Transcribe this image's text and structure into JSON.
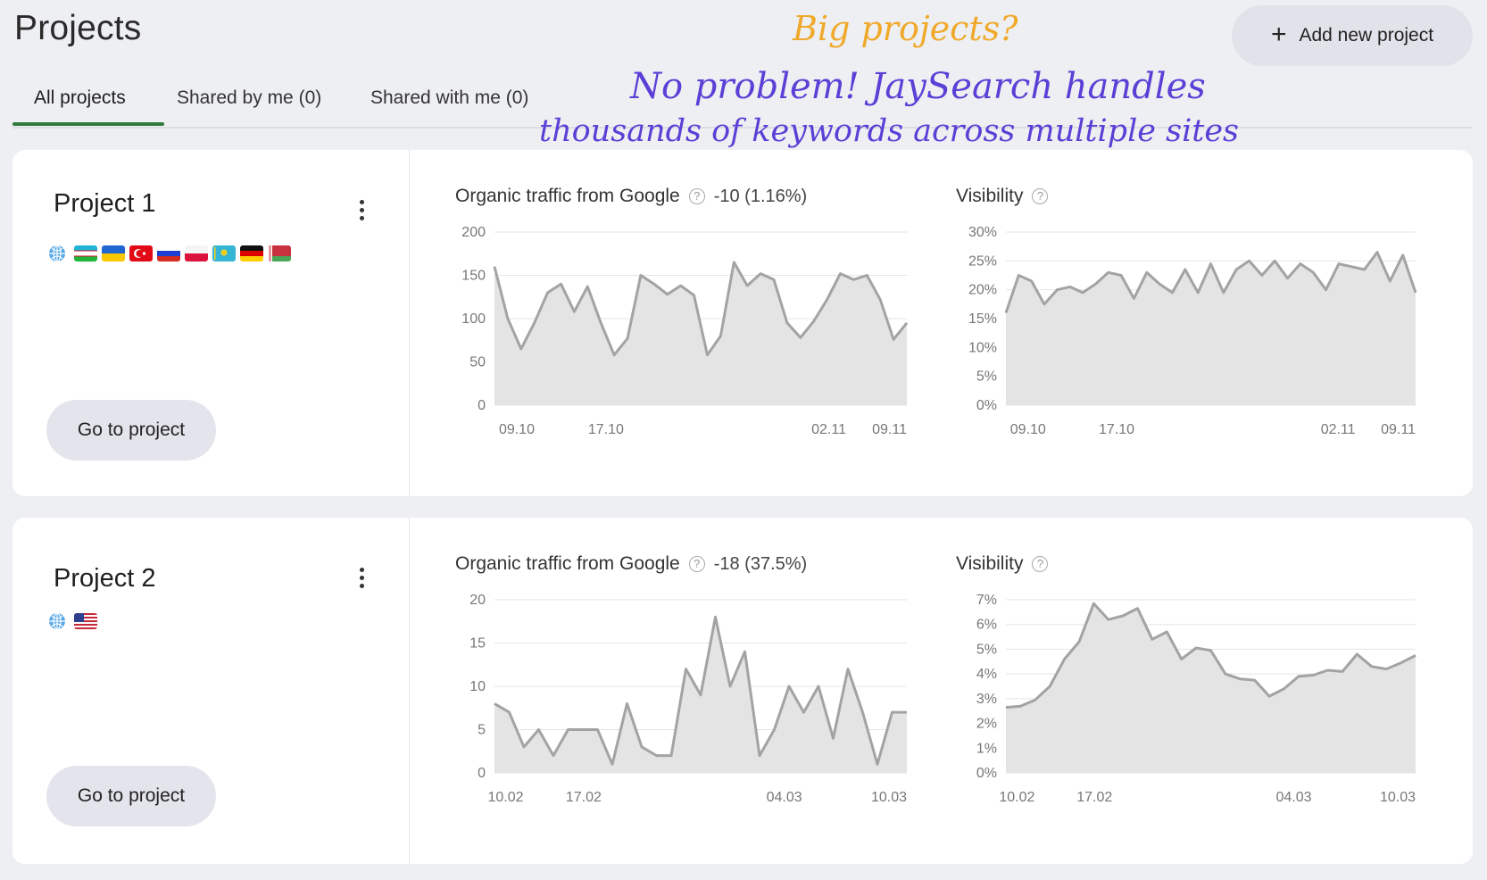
{
  "header": {
    "title": "Projects",
    "add_button_label": "Add new project",
    "add_button_icon": "plus-icon"
  },
  "tabs": [
    {
      "label": "All projects",
      "active": true
    },
    {
      "label": "Shared by me (0)",
      "active": false
    },
    {
      "label": "Shared with me (0)",
      "active": false
    }
  ],
  "annotation": {
    "line1": "Big projects?",
    "line2": "No problem! JaySearch handles",
    "line3": "thousands of keywords across multiple sites",
    "colors": {
      "line1": "#f0a92a",
      "line2": "#5b3fd6",
      "line3": "#5b3fd6"
    }
  },
  "colors": {
    "accent": "#2f7a3c",
    "chart_line": "#a3a3a3",
    "chart_fill": "#e4e4e4"
  },
  "projects": [
    {
      "name": "Project 1",
      "flags": [
        "globe-icon",
        "uzbekistan-flag",
        "ukraine-flag",
        "turkey-flag",
        "russia-flag",
        "poland-flag",
        "kazakhstan-flag",
        "germany-flag",
        "belarus-flag"
      ],
      "go_label": "Go to project",
      "traffic_title": "Organic traffic from Google",
      "traffic_delta": "-10 (1.16%)",
      "visibility_title": "Visibility"
    },
    {
      "name": "Project 2",
      "flags": [
        "globe-icon",
        "usa-flag"
      ],
      "go_label": "Go to project",
      "traffic_title": "Organic traffic from Google",
      "traffic_delta": "-18 (37.5%)",
      "visibility_title": "Visibility"
    }
  ],
  "chart_data": [
    {
      "type": "area",
      "y_tick_labels": [
        "0",
        "50",
        "100",
        "150",
        "200"
      ],
      "ylim": [
        0,
        200
      ],
      "x_tick_labels": [
        "09.10",
        "17.10",
        "02.11",
        "09.11"
      ],
      "x_tick_indices": [
        2,
        10,
        30,
        37
      ],
      "values": [
        160,
        100,
        65,
        95,
        130,
        140,
        108,
        137,
        95,
        58,
        77,
        150,
        140,
        128,
        138,
        127,
        58,
        80,
        165,
        138,
        152,
        145,
        95,
        78,
        97,
        122,
        152,
        145,
        150,
        122,
        76,
        95
      ]
    },
    {
      "type": "area",
      "y_tick_labels": [
        "0%",
        "5%",
        "10%",
        "15%",
        "20%",
        "25%",
        "30%"
      ],
      "ylim": [
        0,
        30
      ],
      "x_tick_labels": [
        "09.10",
        "17.10",
        "02.11",
        "09.11"
      ],
      "x_tick_indices": [
        2,
        10,
        30,
        37
      ],
      "values": [
        16,
        22.5,
        21.5,
        17.5,
        20,
        20.5,
        19.5,
        21,
        23,
        22.5,
        18.5,
        23,
        21,
        19.5,
        23.5,
        19.5,
        24.5,
        19.5,
        23.5,
        25,
        22.5,
        25,
        22,
        24.5,
        23,
        20,
        24.5,
        24,
        23.5,
        26.5,
        21.5,
        26,
        19.5
      ]
    },
    {
      "type": "area",
      "y_tick_labels": [
        "0",
        "5",
        "10",
        "15",
        "20"
      ],
      "ylim": [
        0,
        20
      ],
      "x_tick_labels": [
        "10.02",
        "17.02",
        "04.03",
        "10.03"
      ],
      "x_tick_indices": [
        1,
        8,
        26,
        32
      ],
      "values": [
        8,
        7,
        3,
        5,
        2,
        5,
        5,
        5,
        1,
        8,
        3,
        2,
        2,
        12,
        9,
        18,
        10,
        14,
        2,
        5,
        10,
        7,
        10,
        4,
        12,
        7,
        1,
        7,
        7
      ]
    },
    {
      "type": "area",
      "y_tick_labels": [
        "0%",
        "1%",
        "2%",
        "3%",
        "4%",
        "5%",
        "6%",
        "7%"
      ],
      "ylim": [
        0,
        7
      ],
      "x_tick_labels": [
        "10.02",
        "17.02",
        "04.03",
        "10.03"
      ],
      "x_tick_indices": [
        1,
        8,
        26,
        32
      ],
      "values": [
        2.65,
        2.7,
        2.95,
        3.5,
        4.6,
        5.3,
        6.85,
        6.2,
        6.35,
        6.65,
        5.4,
        5.7,
        4.6,
        5.05,
        4.95,
        4,
        3.8,
        3.75,
        3.1,
        3.4,
        3.9,
        3.95,
        4.15,
        4.1,
        4.8,
        4.3,
        4.2,
        4.45,
        4.75
      ]
    }
  ]
}
